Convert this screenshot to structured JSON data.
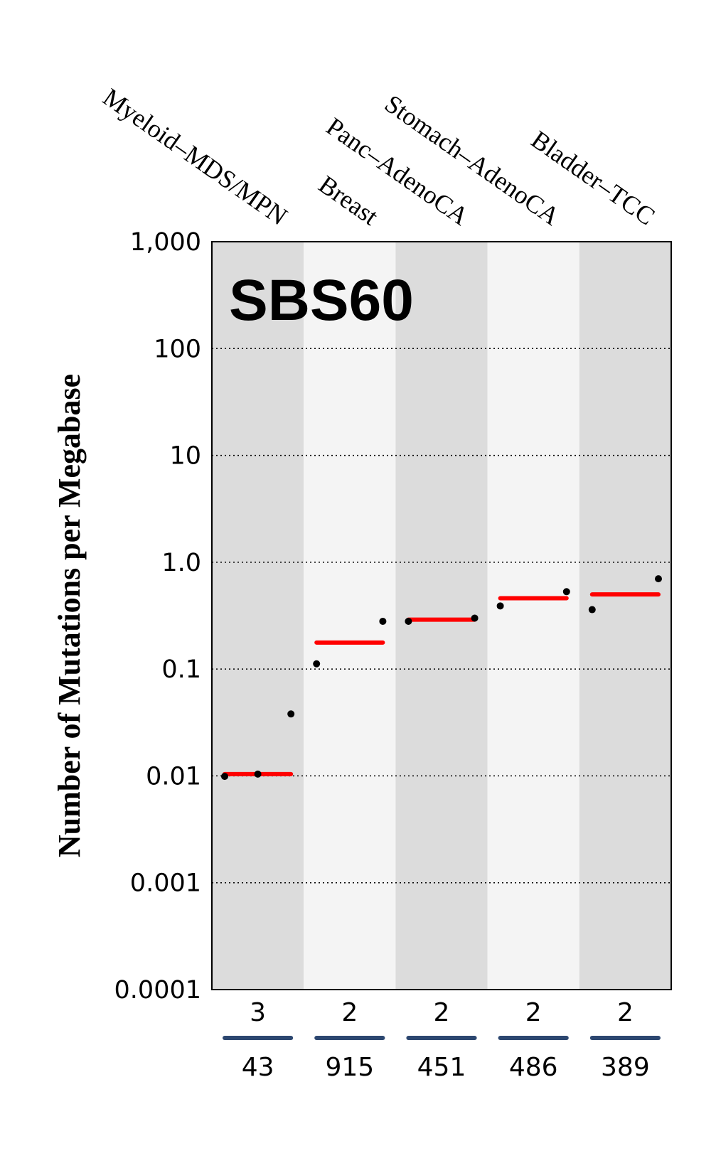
{
  "chart_data": {
    "type": "scatter",
    "title": "SBS60",
    "ylabel": "Number of Mutations per Megabase",
    "xlabel": "",
    "yscale": "log",
    "ylim": [
      0.0001,
      1000
    ],
    "yticks": [
      1000,
      100,
      10,
      1.0,
      0.1,
      0.01,
      0.001,
      0.0001
    ],
    "ytick_labels": [
      "1,000",
      "100",
      "10",
      "1.0",
      "0.1",
      "0.01",
      "0.001",
      "0.0001"
    ],
    "grid": "horizontal dotted at each decade",
    "categories": [
      "Myeloid–MDS/MPN",
      "Breast",
      "Panc–AdenoCA",
      "Stomach–AdenoCA",
      "Bladder–TCC"
    ],
    "samples_with_signature": [
      3,
      2,
      2,
      2,
      2
    ],
    "total_samples": [
      43,
      915,
      451,
      486,
      389
    ],
    "series": [
      {
        "name": "Myeloid–MDS/MPN",
        "points": [
          0.0099,
          0.0104,
          0.038
        ],
        "median": 0.0104
      },
      {
        "name": "Breast",
        "points": [
          0.112,
          0.28
        ],
        "median": 0.177
      },
      {
        "name": "Panc–AdenoCA",
        "points": [
          0.28,
          0.3
        ],
        "median": 0.29
      },
      {
        "name": "Stomach–AdenoCA",
        "points": [
          0.39,
          0.53
        ],
        "median": 0.46
      },
      {
        "name": "Bladder–TCC",
        "points": [
          0.36,
          0.7
        ],
        "median": 0.5
      }
    ],
    "colors": {
      "band_dark": "#dcdcdc",
      "band_light": "#f4f4f4",
      "median_line": "#ff0000",
      "points": "#000000",
      "fraction_bar": "#2c4770"
    }
  }
}
